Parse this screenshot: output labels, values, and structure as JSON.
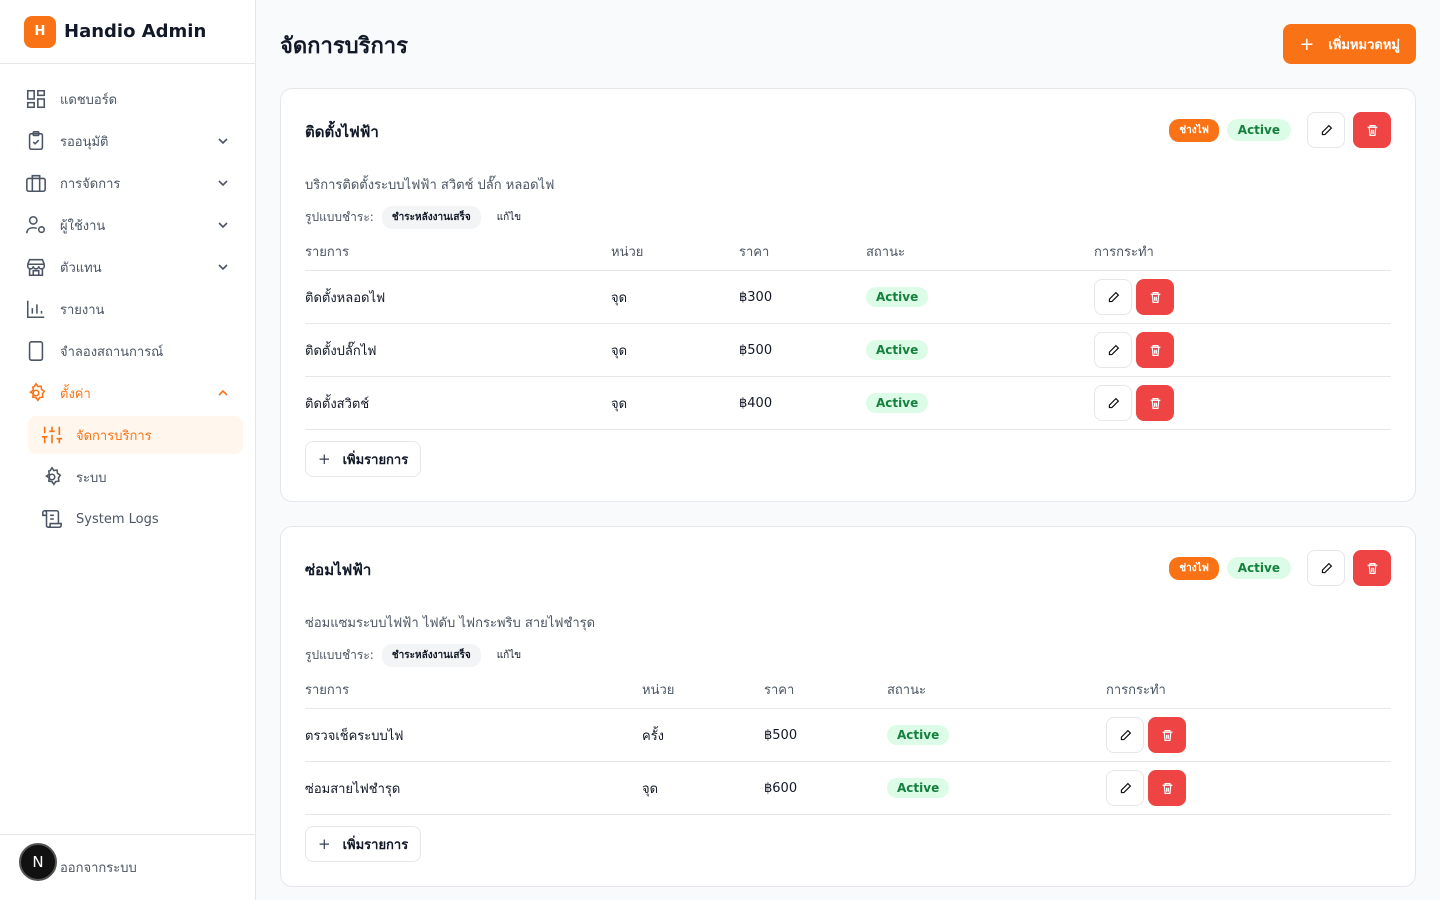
{
  "brand": {
    "logo_letter": "H",
    "name": "Handio Admin"
  },
  "nav": {
    "dashboard": "แดชบอร์ด",
    "pending": "รออนุมัติ",
    "management": "การจัดการ",
    "users": "ผู้ใช้งาน",
    "agents": "ตัวแทน",
    "reports": "รายงาน",
    "simulation": "จำลองสถานการณ์",
    "settings": "ตั้งค่า",
    "sub_services": "จัดการบริการ",
    "sub_system": "ระบบ",
    "sub_logs": "System Logs"
  },
  "footer": {
    "badge": "N",
    "logout": "ออกจากระบบ"
  },
  "page": {
    "title": "จัดการบริการ",
    "add_category": "เพิ่มหมวดหมู่"
  },
  "table_headers": {
    "item": "รายการ",
    "unit": "หน่วย",
    "price": "ราคา",
    "status": "สถานะ",
    "actions": "การกระทำ"
  },
  "add_item_label": "เพิ่มรายการ",
  "categories": [
    {
      "title": "ติดตั้งไฟฟ้า",
      "tag": "ช่างไฟ",
      "status": "Active",
      "description": "บริการติดตั้งระบบไฟฟ้า สวิตช์ ปลั๊ก หลอดไฟ",
      "payment_label": "รูปแบบชำระ:",
      "payment_value": "ชำระหลังงานเสร็จ",
      "payment_edit": "แก้ไข",
      "items": [
        {
          "name": "ติดตั้งหลอดไฟ",
          "unit": "จุด",
          "price": "฿300",
          "status": "Active"
        },
        {
          "name": "ติดตั้งปลั๊กไฟ",
          "unit": "จุด",
          "price": "฿500",
          "status": "Active"
        },
        {
          "name": "ติดตั้งสวิตช์",
          "unit": "จุด",
          "price": "฿400",
          "status": "Active"
        }
      ]
    },
    {
      "title": "ซ่อมไฟฟ้า",
      "tag": "ช่างไฟ",
      "status": "Active",
      "description": "ซ่อมแซมระบบไฟฟ้า ไฟดับ ไฟกระพริบ สายไฟชำรุด",
      "payment_label": "รูปแบบชำระ:",
      "payment_value": "ชำระหลังงานเสร็จ",
      "payment_edit": "แก้ไข",
      "items": [
        {
          "name": "ตรวจเช็คระบบไฟ",
          "unit": "ครั้ง",
          "price": "฿500",
          "status": "Active"
        },
        {
          "name": "ซ่อมสายไฟชำรุด",
          "unit": "จุด",
          "price": "฿600",
          "status": "Active"
        }
      ]
    }
  ],
  "colors": {
    "accent": "#f97316",
    "danger": "#ef4444",
    "success_bg": "#dcfce7",
    "success_text": "#15803d"
  }
}
